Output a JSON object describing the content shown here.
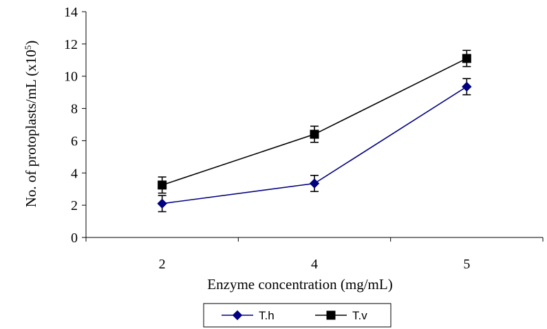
{
  "chart_data": {
    "type": "line",
    "categories": [
      "2",
      "4",
      "5"
    ],
    "xlabel": "Enzyme concentration (mg/mL)",
    "ylabel": {
      "main": "No. of protoplasts/mL  (x10",
      "sup": "5",
      "close": ")"
    },
    "ylim": [
      0,
      14
    ],
    "yticks": [
      0,
      2,
      4,
      6,
      8,
      10,
      12,
      14
    ],
    "grid": false,
    "legend_position": "bottom",
    "series": [
      {
        "name": "T.h",
        "values": [
          2.1,
          3.35,
          9.35
        ],
        "errors": [
          0.5,
          0.5,
          0.5
        ],
        "marker": "diamond",
        "color": "#000080"
      },
      {
        "name": "T.v",
        "values": [
          3.25,
          6.4,
          11.1
        ],
        "errors": [
          0.5,
          0.5,
          0.5
        ],
        "marker": "square",
        "color": "#000000"
      }
    ]
  }
}
